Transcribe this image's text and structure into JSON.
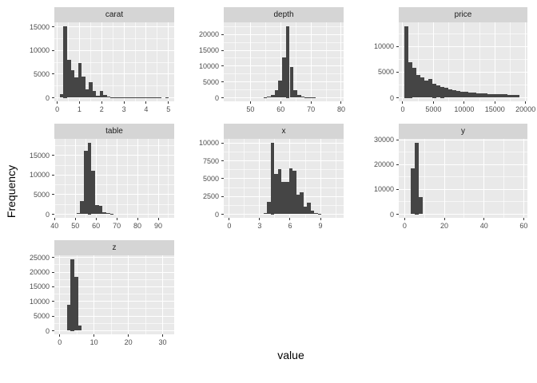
{
  "figure": {
    "background": "#ffffff",
    "panel_background": "#e9e9e9",
    "strip_background": "#d5d5d5",
    "bar_color": "#454545",
    "grid_major_color": "#ffffff",
    "grid_minor_color": "rgba(255,255,255,0.62)",
    "tick_mark_color": "#333333",
    "tick_label_color": "#4d4d4d",
    "strip_text_color": "#1a1a1a"
  },
  "axes": {
    "x_title": "value",
    "y_title": "Frequency"
  },
  "chart_data": [
    {
      "type": "bar",
      "title": "carat",
      "row": 0,
      "col": 0,
      "xlim": [
        -0.13,
        5.26
      ],
      "xticks": [
        0,
        1,
        2,
        3,
        4,
        5
      ],
      "yticks": [
        0,
        5000,
        10000,
        15000
      ],
      "ymax": 15200,
      "bin_start": 0.12,
      "bin_width": 0.163,
      "counts": [
        700,
        15200,
        8100,
        5800,
        4300,
        7300,
        4400,
        1700,
        3300,
        1400,
        500,
        1400,
        600,
        300,
        130,
        140,
        60,
        40,
        25,
        15,
        10,
        8,
        5,
        3,
        2,
        1,
        1,
        1,
        0,
        1
      ]
    },
    {
      "type": "bar",
      "title": "depth",
      "row": 0,
      "col": 1,
      "xlim": [
        41.2,
        80.8
      ],
      "xticks": [
        50,
        60,
        70,
        80
      ],
      "yticks": [
        0,
        5000,
        10000,
        15000,
        20000
      ],
      "ymax": 22700,
      "bin_start": 54.3,
      "bin_width": 1.24,
      "counts": [
        150,
        400,
        900,
        2300,
        5300,
        12800,
        22700,
        9600,
        2300,
        900,
        400,
        250,
        120,
        60
      ]
    },
    {
      "type": "bar",
      "title": "price",
      "row": 0,
      "col": 2,
      "xlim": [
        -650,
        20300
      ],
      "xticks": [
        0,
        5000,
        10000,
        15000,
        20000
      ],
      "yticks": [
        0,
        5000,
        10000
      ],
      "ymax": 14000,
      "bin_start": 300,
      "bin_width": 645,
      "counts": [
        14000,
        7000,
        5800,
        4500,
        3900,
        3300,
        3700,
        2800,
        2400,
        2100,
        1900,
        1700,
        1500,
        1350,
        1200,
        1100,
        1000,
        950,
        900,
        850,
        800,
        760,
        720,
        690,
        660,
        630,
        600,
        580,
        550
      ]
    },
    {
      "type": "bar",
      "title": "table",
      "row": 1,
      "col": 0,
      "xlim": [
        39.9,
        97.7
      ],
      "xticks": [
        40,
        50,
        60,
        70,
        80,
        90
      ],
      "yticks": [
        0,
        5000,
        10000,
        15000
      ],
      "ymax": 18300,
      "bin_start": 50.6,
      "bin_width": 1.79,
      "counts": [
        300,
        3400,
        16200,
        18300,
        11000,
        2400,
        2100,
        600,
        250,
        100
      ]
    },
    {
      "type": "bar",
      "title": "x",
      "row": 1,
      "col": 1,
      "xlim": [
        -0.54,
        11.28
      ],
      "xticks": [
        0,
        3,
        6,
        9
      ],
      "yticks": [
        0,
        2500,
        5000,
        7500,
        10000
      ],
      "ymax": 10100,
      "bin_start": 3.38,
      "bin_width": 0.358,
      "counts": [
        150,
        1700,
        10100,
        5700,
        6300,
        4500,
        4500,
        6500,
        6100,
        2700,
        3100,
        1100,
        1600,
        500,
        150,
        50
      ]
    },
    {
      "type": "bar",
      "title": "y",
      "row": 1,
      "col": 2,
      "xlim": [
        -2.95,
        61.85
      ],
      "xticks": [
        0,
        20,
        40,
        60
      ],
      "yticks": [
        0,
        10000,
        20000,
        30000
      ],
      "ymax": 29000,
      "bin_start": 3.0,
      "bin_width": 2.0,
      "counts": [
        18500,
        29000,
        6800
      ]
    },
    {
      "type": "bar",
      "title": "z",
      "row": 2,
      "col": 0,
      "xlim": [
        -1.59,
        33.39
      ],
      "xticks": [
        0,
        10,
        20,
        30
      ],
      "yticks": [
        0,
        5000,
        10000,
        15000,
        20000,
        25000
      ],
      "ymax": 24500,
      "bin_start": 2.1,
      "bin_width": 1.07,
      "counts": [
        8800,
        24500,
        18500,
        1800
      ]
    }
  ]
}
